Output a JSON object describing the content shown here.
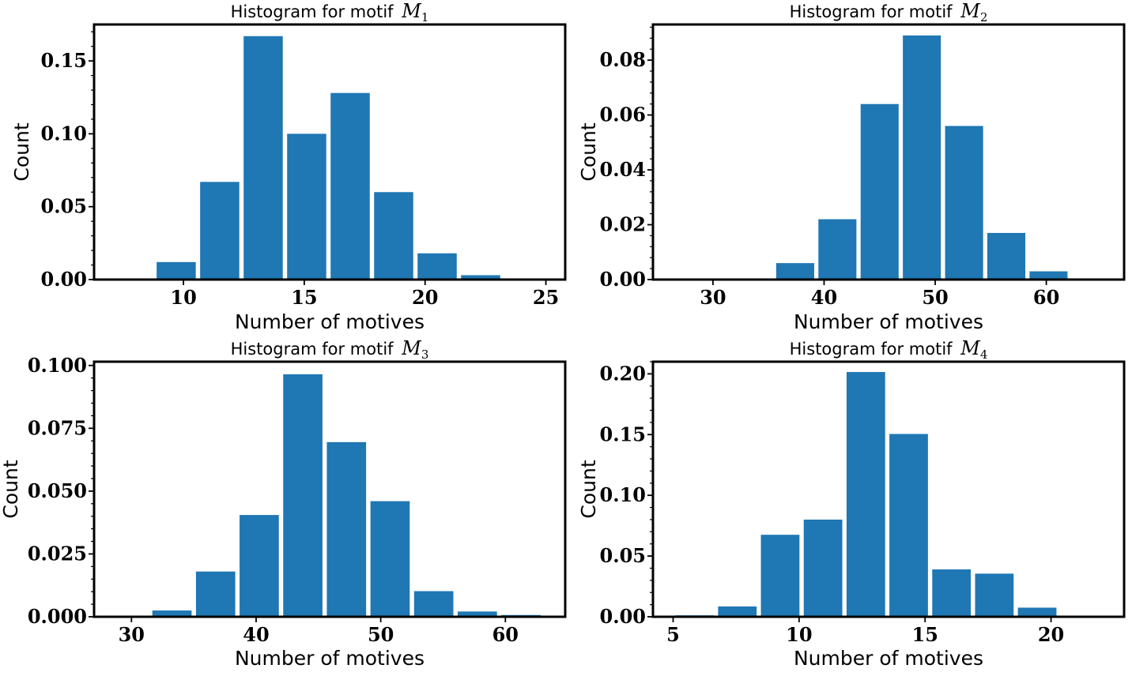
{
  "chart_data": [
    {
      "type": "bar",
      "title_prefix": "Histogram for motif",
      "title_math": "M",
      "title_sub": "1",
      "xlabel": "Number of motives",
      "ylabel": "Count",
      "xlim": [
        6.3,
        25.8
      ],
      "ylim": [
        0,
        0.175
      ],
      "xticks": [
        10,
        15,
        20,
        25
      ],
      "yticks": [
        0.0,
        0.05,
        0.1,
        0.15
      ],
      "ytick_labels": [
        "0.00",
        "0.05",
        "0.10",
        "0.15"
      ],
      "bin_edges": [
        8.8,
        10.6,
        12.4,
        14.2,
        16.0,
        17.8,
        19.6,
        21.4,
        23.2,
        25.0
      ],
      "values": [
        0.012,
        0.067,
        0.167,
        0.1,
        0.128,
        0.06,
        0.018,
        0.003,
        0.0
      ],
      "color": "#1f77b4"
    },
    {
      "type": "bar",
      "title_prefix": "Histogram for motif",
      "title_math": "M",
      "title_sub": "2",
      "xlabel": "Number of motives",
      "ylabel": "Count",
      "xlim": [
        24.6,
        67.0
      ],
      "ylim": [
        0,
        0.093
      ],
      "xticks": [
        30,
        40,
        50,
        60
      ],
      "yticks": [
        0.0,
        0.02,
        0.04,
        0.06,
        0.08
      ],
      "ytick_labels": [
        "0.00",
        "0.02",
        "0.04",
        "0.06",
        "0.08"
      ],
      "bin_edges": [
        27.9,
        31.7,
        35.5,
        39.3,
        43.1,
        46.9,
        50.7,
        54.5,
        58.3,
        62.1,
        65.9
      ],
      "values": [
        0.0,
        0.0,
        0.006,
        0.022,
        0.064,
        0.089,
        0.056,
        0.017,
        0.003,
        0.0
      ],
      "color": "#1f77b4"
    },
    {
      "type": "bar",
      "title_prefix": "Histogram for motif",
      "title_math": "M",
      "title_sub": "3",
      "xlabel": "Number of motives",
      "ylabel": "Count",
      "xlim": [
        27.0,
        64.8
      ],
      "ylim": [
        0,
        0.1015
      ],
      "xticks": [
        30,
        40,
        50,
        60
      ],
      "yticks": [
        0.0,
        0.025,
        0.05,
        0.075,
        0.1
      ],
      "ytick_labels": [
        "0.000",
        "0.025",
        "0.050",
        "0.075",
        "0.100"
      ],
      "bin_edges": [
        28.0,
        31.5,
        35.0,
        38.5,
        42.0,
        45.5,
        49.0,
        52.5,
        56.0,
        59.5,
        63.0
      ],
      "values": [
        0.0,
        0.0025,
        0.018,
        0.0405,
        0.0965,
        0.0695,
        0.046,
        0.0102,
        0.0021,
        0.0007
      ],
      "color": "#1f77b4"
    },
    {
      "type": "bar",
      "title_prefix": "Histogram for motif",
      "title_math": "M",
      "title_sub": "4",
      "xlabel": "Number of motives",
      "ylabel": "Count",
      "xlim": [
        4.2,
        22.9
      ],
      "ylim": [
        0,
        0.21
      ],
      "xticks": [
        5,
        10,
        15,
        20
      ],
      "yticks": [
        0.0,
        0.05,
        0.1,
        0.15,
        0.2
      ],
      "ytick_labels": [
        "0.00",
        "0.05",
        "0.10",
        "0.15",
        "0.20"
      ],
      "bin_edges": [
        5.0,
        6.7,
        8.4,
        10.1,
        11.8,
        13.5,
        15.2,
        16.9,
        18.6,
        20.3,
        22.0
      ],
      "values": [
        0.0012,
        0.0085,
        0.0675,
        0.08,
        0.2015,
        0.1505,
        0.039,
        0.0355,
        0.0075,
        0.0
      ],
      "color": "#1f77b4"
    }
  ]
}
